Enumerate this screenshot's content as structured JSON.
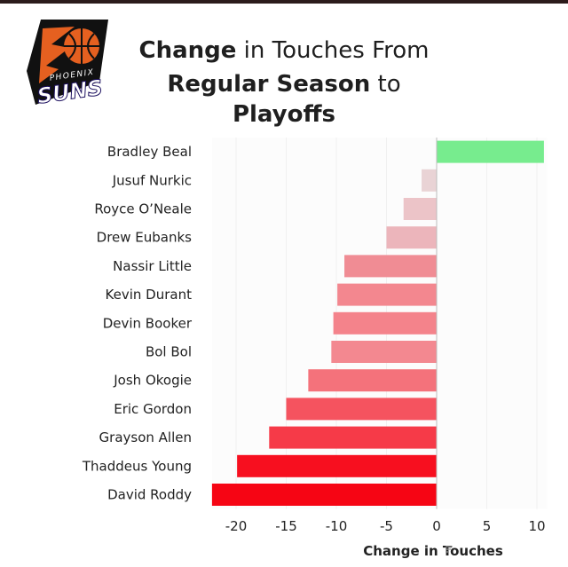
{
  "logo": {
    "top_text": "PHOENIX",
    "main_text": "SUNS",
    "colors": {
      "orange": "#e56020",
      "black": "#111111",
      "purple": "#1d1160"
    }
  },
  "title": {
    "line1_bold": "Change",
    "line1_rest": " in Touches From",
    "line2_bold1": "Regular Season",
    "line2_mid": " to ",
    "line2_bold2": "Playoffs"
  },
  "chart_data": {
    "type": "bar",
    "orientation": "horizontal",
    "categories": [
      "Bradley Beal",
      "Jusuf Nurkic",
      "Royce O’Neale",
      "Drew Eubanks",
      "Nassir Little",
      "Kevin Durant",
      "Devin Booker",
      "Bol Bol",
      "Josh Okogie",
      "Eric Gordon",
      "Grayson Allen",
      "Thaddeus Young",
      "David Roddy"
    ],
    "values": [
      10.7,
      -1.5,
      -3.3,
      -5.0,
      -9.2,
      -9.9,
      -10.3,
      -10.5,
      -12.8,
      -15.0,
      -16.7,
      -19.9,
      -22.4
    ],
    "colors": [
      "#77ec8e",
      "#e9d3d5",
      "#ecc4c8",
      "#ecb5bb",
      "#f08c94",
      "#f3878f",
      "#f4838b",
      "#f38890",
      "#f4727b",
      "#f5535f",
      "#f63a48",
      "#f70f1f",
      "#f60514"
    ],
    "xlim": [
      -22.4,
      11
    ],
    "xticks": [
      -20,
      -15,
      -10,
      -5,
      0,
      5,
      10
    ],
    "xlabel": "Change in Touches",
    "ylabel": "",
    "grid": true
  }
}
